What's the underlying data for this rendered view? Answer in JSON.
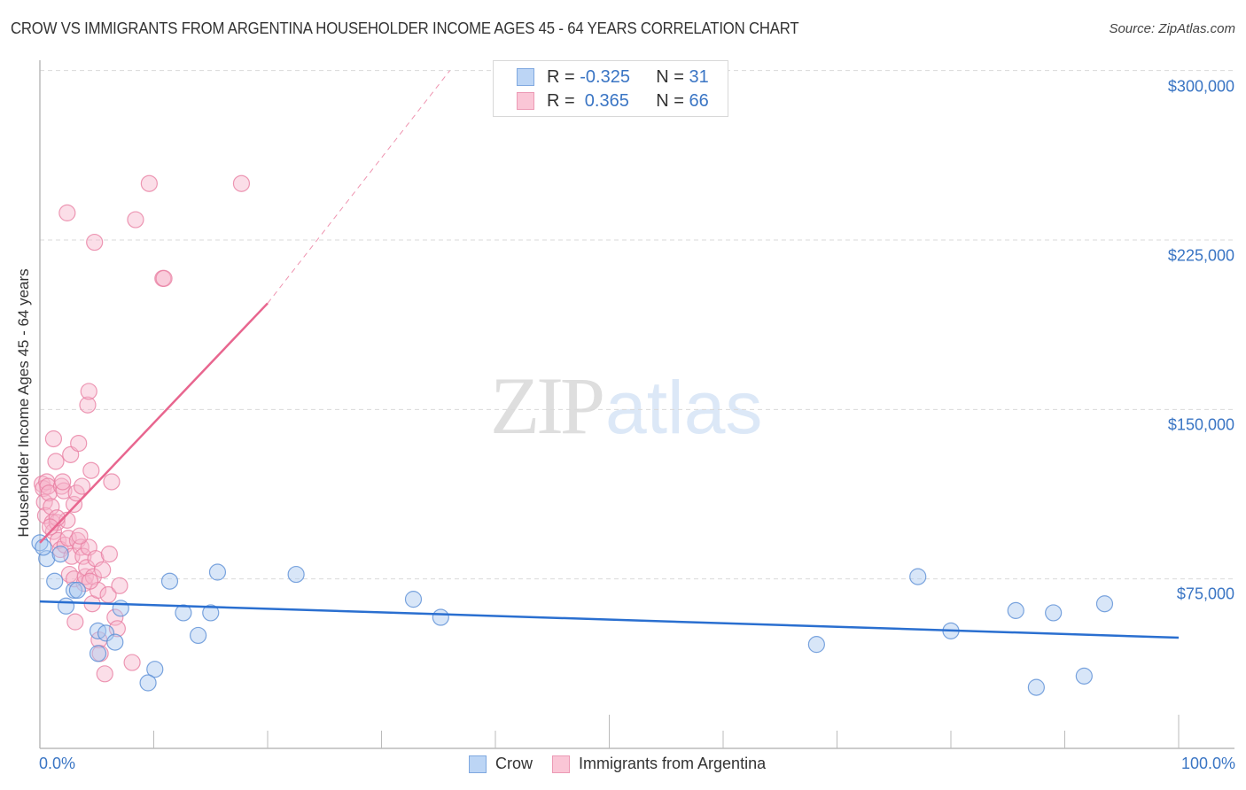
{
  "header": {
    "title": "CROW VS IMMIGRANTS FROM ARGENTINA HOUSEHOLDER INCOME AGES 45 - 64 YEARS CORRELATION CHART",
    "source": "Source: ZipAtlas.com"
  },
  "watermark": {
    "zip": "ZIP",
    "atlas": "atlas"
  },
  "legend_box": {
    "rows": [
      {
        "series": "Crow",
        "r_label": "R =",
        "r_value": "-0.325",
        "n_label": "N =",
        "n_value": "31",
        "color": "#a9c8f0"
      },
      {
        "series": "Immigrants from Argentina",
        "r_label": "R =",
        "r_value": " 0.365",
        "n_label": "N =",
        "n_value": "66",
        "color": "#f7b6cb"
      }
    ]
  },
  "bottom_legend": {
    "items": [
      {
        "label": "Crow",
        "color": "#a9c8f0"
      },
      {
        "label": "Immigrants from Argentina",
        "color": "#f7b6cb"
      }
    ]
  },
  "axes": {
    "y_title": "Householder Income Ages 45 - 64 years",
    "y_ticks": [
      "$300,000",
      "$225,000",
      "$150,000",
      "$75,000"
    ],
    "x_ticks": [
      "0.0%",
      "100.0%"
    ]
  },
  "colors": {
    "crow_fill": "#a9c8f0",
    "crow_stroke": "#5b8fd6",
    "crow_line": "#2a6fd0",
    "arg_fill": "#f7b6cb",
    "arg_stroke": "#e87fa2",
    "arg_line": "#e8668f",
    "tick_text": "#3a75c4",
    "grid": "#d9d9d9"
  },
  "chart_data": {
    "type": "scatter",
    "title": "CROW VS IMMIGRANTS FROM ARGENTINA HOUSEHOLDER INCOME AGES 45 - 64 YEARS CORRELATION CHART",
    "xlabel": "",
    "ylabel": "Householder Income Ages 45 - 64 years",
    "xlim": [
      0,
      100
    ],
    "ylim": [
      0,
      300000
    ],
    "x_unit": "%",
    "y_ticks": [
      75000,
      150000,
      225000,
      300000
    ],
    "x_tick_labels": [
      "0.0%",
      "100.0%"
    ],
    "grid": true,
    "legend_position": "top-center and bottom",
    "series": [
      {
        "name": "Crow",
        "R": -0.325,
        "N": 31,
        "trend": {
          "x": [
            0,
            100
          ],
          "y": [
            65000,
            49000
          ]
        },
        "points": [
          [
            0.0,
            91000
          ],
          [
            0.6,
            84000
          ],
          [
            1.8,
            86000
          ],
          [
            1.3,
            74000
          ],
          [
            2.3,
            63000
          ],
          [
            3.0,
            70000
          ],
          [
            3.3,
            70000
          ],
          [
            5.1,
            52000
          ],
          [
            5.8,
            51000
          ],
          [
            6.6,
            47000
          ],
          [
            5.1,
            42000
          ],
          [
            7.1,
            62000
          ],
          [
            10.1,
            35000
          ],
          [
            9.5,
            29000
          ],
          [
            11.4,
            74000
          ],
          [
            12.6,
            60000
          ],
          [
            15.0,
            60000
          ],
          [
            13.9,
            50000
          ],
          [
            15.6,
            78000
          ],
          [
            22.5,
            77000
          ],
          [
            32.8,
            66000
          ],
          [
            35.2,
            58000
          ],
          [
            68.2,
            46000
          ],
          [
            77.1,
            76000
          ],
          [
            80.0,
            52000
          ],
          [
            85.7,
            61000
          ],
          [
            87.5,
            27000
          ],
          [
            89.0,
            60000
          ],
          [
            91.7,
            32000
          ],
          [
            93.5,
            64000
          ],
          [
            0.3,
            89000
          ]
        ]
      },
      {
        "name": "Immigrants from Argentina",
        "R": 0.365,
        "N": 66,
        "trend": {
          "x": [
            0,
            20
          ],
          "y": [
            91000,
            197000
          ],
          "dashed_extension": {
            "x": [
              20,
              36
            ],
            "y": [
              197000,
              300000
            ]
          }
        },
        "points": [
          [
            0.2,
            117000
          ],
          [
            0.3,
            115000
          ],
          [
            0.4,
            109000
          ],
          [
            0.5,
            103000
          ],
          [
            0.6,
            118000
          ],
          [
            0.7,
            116000
          ],
          [
            0.8,
            113000
          ],
          [
            1.0,
            107000
          ],
          [
            1.1,
            100000
          ],
          [
            1.2,
            96000
          ],
          [
            1.2,
            137000
          ],
          [
            1.4,
            127000
          ],
          [
            1.5,
            100000
          ],
          [
            1.6,
            92000
          ],
          [
            1.8,
            88000
          ],
          [
            1.9,
            116000
          ],
          [
            2.1,
            114000
          ],
          [
            2.2,
            90000
          ],
          [
            2.4,
            101000
          ],
          [
            2.5,
            93000
          ],
          [
            2.6,
            77000
          ],
          [
            2.7,
            130000
          ],
          [
            2.8,
            85000
          ],
          [
            3.0,
            108000
          ],
          [
            3.0,
            75000
          ],
          [
            3.1,
            56000
          ],
          [
            3.2,
            113000
          ],
          [
            3.3,
            92000
          ],
          [
            3.4,
            135000
          ],
          [
            3.6,
            89000
          ],
          [
            3.7,
            116000
          ],
          [
            3.8,
            85000
          ],
          [
            3.9,
            73000
          ],
          [
            4.0,
            76000
          ],
          [
            4.1,
            80000
          ],
          [
            4.2,
            152000
          ],
          [
            4.3,
            158000
          ],
          [
            4.3,
            89000
          ],
          [
            4.5,
            123000
          ],
          [
            4.6,
            64000
          ],
          [
            4.7,
            76000
          ],
          [
            4.9,
            84000
          ],
          [
            5.1,
            70000
          ],
          [
            5.2,
            48000
          ],
          [
            5.3,
            42000
          ],
          [
            5.5,
            79000
          ],
          [
            5.7,
            33000
          ],
          [
            6.0,
            68000
          ],
          [
            6.3,
            118000
          ],
          [
            6.6,
            58000
          ],
          [
            6.8,
            53000
          ],
          [
            7.0,
            72000
          ],
          [
            8.1,
            38000
          ],
          [
            8.4,
            234000
          ],
          [
            9.6,
            250000
          ],
          [
            10.8,
            208000
          ],
          [
            10.9,
            208000
          ],
          [
            17.7,
            250000
          ],
          [
            2.4,
            237000
          ],
          [
            4.8,
            224000
          ],
          [
            1.5,
            102000
          ],
          [
            2.0,
            118000
          ],
          [
            3.5,
            94000
          ],
          [
            6.1,
            86000
          ],
          [
            4.4,
            74000
          ],
          [
            0.9,
            98000
          ]
        ]
      }
    ]
  }
}
